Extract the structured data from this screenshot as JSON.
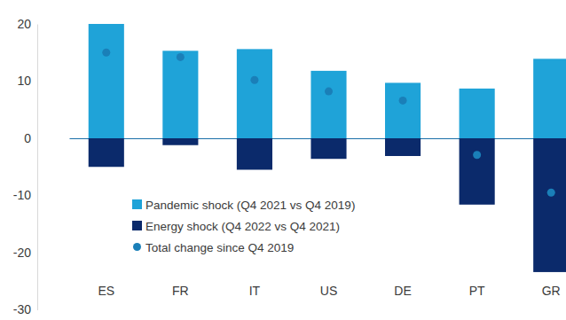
{
  "chart_data": {
    "type": "bar",
    "stacked": true,
    "grid": false,
    "legend": "bottom",
    "categories": [
      "ES",
      "FR",
      "IT",
      "US",
      "DE",
      "PT",
      "GR"
    ],
    "series": [
      {
        "name": "Pandemic shock (Q4 2021 vs Q4 2019)",
        "type": "bar",
        "color": "#1fa3d8",
        "values": [
          20,
          15.3,
          15.6,
          11.8,
          9.7,
          8.7,
          13.9
        ]
      },
      {
        "name": "Energy shock (Q4 2022 vs Q4 2021)",
        "type": "bar",
        "color": "#0b2a6b",
        "values": [
          -5,
          -1.2,
          -5.5,
          -3.6,
          -3.1,
          -11.6,
          -23.4
        ]
      },
      {
        "name": "Total change since Q4 2019",
        "type": "scatter",
        "marker": "circle",
        "color": "#1a7fb8",
        "values": [
          15,
          14.2,
          10.2,
          8.2,
          6.6,
          -2.9,
          -9.5
        ]
      }
    ],
    "ylim": [
      -30,
      20
    ],
    "yticks": [
      -30,
      -20,
      -10,
      0,
      10,
      20
    ]
  }
}
